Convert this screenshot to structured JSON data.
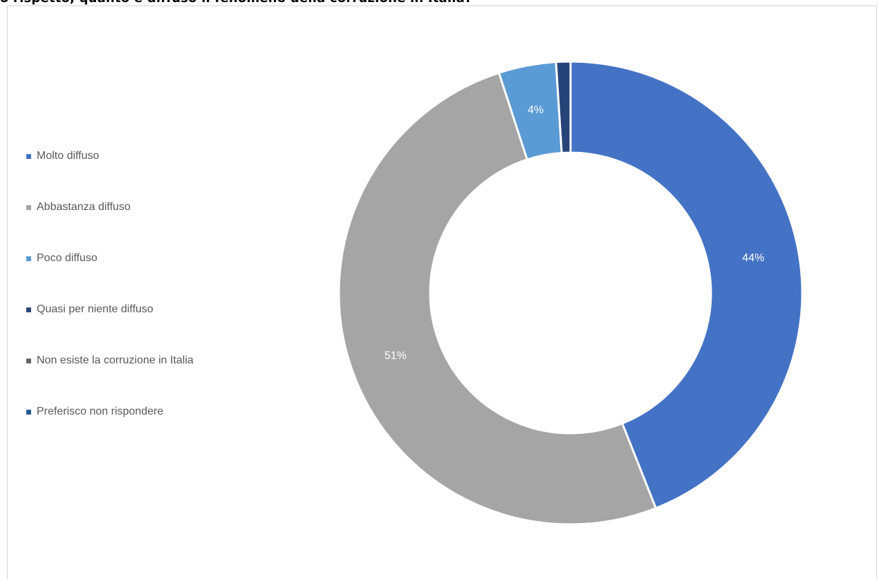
{
  "header_fragment": "o rispetto, quanto è diffuso il fenomeno della corruzione in Italia?",
  "chart_data": {
    "type": "pie",
    "variant": "donut",
    "legend_position": "left",
    "categories": [
      "Molto diffuso",
      "Abbastanza diffuso",
      "Poco diffuso",
      "Quasi per niente diffuso",
      "Non esiste la corruzione in Italia",
      "Preferisco non rispondere"
    ],
    "values": [
      44,
      51,
      4,
      1,
      0,
      0
    ],
    "data_labels": [
      "44%",
      "51%",
      "4%",
      "",
      "",
      ""
    ],
    "colors": [
      "#4472C4",
      "#A5A5A5",
      "#5B9BD5",
      "#264478",
      "#636363",
      "#255E91"
    ],
    "start_angle_deg": 0
  }
}
